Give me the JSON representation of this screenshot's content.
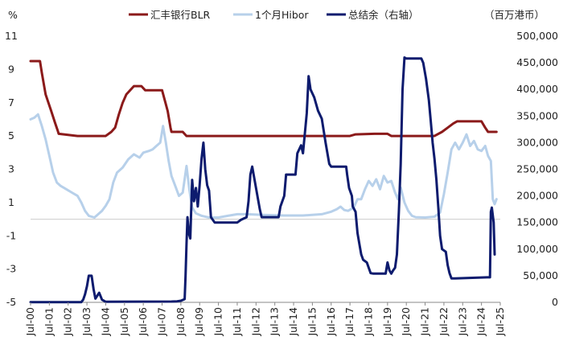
{
  "chart_data": {
    "type": "line",
    "left_unit": "%",
    "right_unit": "（百万港币）",
    "left_ylim": [
      -5,
      11
    ],
    "left_ticks": [
      "11",
      "9",
      "7",
      "5",
      "3",
      "1",
      "-1",
      "-3",
      "-5"
    ],
    "right_ylim": [
      0,
      500000
    ],
    "right_ticks": [
      "500,000",
      "450,000",
      "400,000",
      "350,000",
      "300,000",
      "250,000",
      "200,000",
      "150,000",
      "100,000",
      "50,000",
      "0"
    ],
    "x_tick_labels": [
      "Jul-00",
      "Jul-01",
      "Jul-02",
      "Jul-03",
      "Jul-04",
      "Jul-05",
      "Jul-06",
      "Jul-07",
      "Jul-08",
      "Jul-09",
      "Jul-10",
      "Jul-11",
      "Jul-12",
      "Jul-13",
      "Jul-14",
      "Jul-15",
      "Jul-16",
      "Jul-17",
      "Jul-18",
      "Jul-19",
      "Jul-20",
      "Jul-21",
      "Jul-22",
      "Jul-23",
      "Jul-24",
      "Jul-25"
    ],
    "x_range": [
      2000.5,
      2025.5
    ],
    "legend_position": "top",
    "series": [
      {
        "name": "汇丰银行BLR",
        "axis": "left",
        "color": "#8B1A1A",
        "points": [
          [
            2000.5,
            9.5
          ],
          [
            2001.0,
            9.5
          ],
          [
            2001.1,
            8.8
          ],
          [
            2001.3,
            7.5
          ],
          [
            2001.6,
            6.5
          ],
          [
            2001.8,
            5.8
          ],
          [
            2001.95,
            5.3
          ],
          [
            2002.0,
            5.13
          ],
          [
            2003.0,
            5.0
          ],
          [
            2004.5,
            5.0
          ],
          [
            2004.8,
            5.25
          ],
          [
            2005.0,
            5.5
          ],
          [
            2005.2,
            6.3
          ],
          [
            2005.4,
            7.0
          ],
          [
            2005.6,
            7.5
          ],
          [
            2005.8,
            7.75
          ],
          [
            2006.0,
            8.0
          ],
          [
            2006.4,
            8.0
          ],
          [
            2006.6,
            7.75
          ],
          [
            2007.5,
            7.75
          ],
          [
            2007.8,
            6.5
          ],
          [
            2007.95,
            5.5
          ],
          [
            2008.0,
            5.25
          ],
          [
            2008.6,
            5.25
          ],
          [
            2008.8,
            5.0
          ],
          [
            2017.5,
            5.0
          ],
          [
            2017.8,
            5.1
          ],
          [
            2018.8,
            5.13
          ],
          [
            2019.5,
            5.13
          ],
          [
            2019.7,
            5.0
          ],
          [
            2022.0,
            5.0
          ],
          [
            2022.4,
            5.25
          ],
          [
            2022.7,
            5.5
          ],
          [
            2023.0,
            5.75
          ],
          [
            2023.2,
            5.88
          ],
          [
            2024.5,
            5.88
          ],
          [
            2024.7,
            5.5
          ],
          [
            2024.85,
            5.25
          ],
          [
            2025.3,
            5.25
          ]
        ]
      },
      {
        "name": "1个月Hibor",
        "axis": "left",
        "color": "#B7D0EA",
        "points": [
          [
            2000.5,
            6.0
          ],
          [
            2000.7,
            6.1
          ],
          [
            2000.9,
            6.3
          ],
          [
            2001.1,
            5.6
          ],
          [
            2001.3,
            4.8
          ],
          [
            2001.5,
            3.8
          ],
          [
            2001.7,
            2.8
          ],
          [
            2001.9,
            2.2
          ],
          [
            2002.1,
            2.0
          ],
          [
            2002.4,
            1.8
          ],
          [
            2002.7,
            1.6
          ],
          [
            2003.0,
            1.4
          ],
          [
            2003.2,
            1.0
          ],
          [
            2003.4,
            0.5
          ],
          [
            2003.6,
            0.2
          ],
          [
            2003.9,
            0.1
          ],
          [
            2004.1,
            0.3
          ],
          [
            2004.3,
            0.5
          ],
          [
            2004.5,
            0.8
          ],
          [
            2004.7,
            1.2
          ],
          [
            2004.9,
            2.2
          ],
          [
            2005.1,
            2.8
          ],
          [
            2005.4,
            3.1
          ],
          [
            2005.7,
            3.6
          ],
          [
            2006.0,
            3.9
          ],
          [
            2006.3,
            3.7
          ],
          [
            2006.5,
            4.0
          ],
          [
            2006.8,
            4.1
          ],
          [
            2007.0,
            4.2
          ],
          [
            2007.2,
            4.4
          ],
          [
            2007.4,
            4.6
          ],
          [
            2007.55,
            5.6
          ],
          [
            2007.7,
            4.6
          ],
          [
            2007.85,
            3.5
          ],
          [
            2008.0,
            2.6
          ],
          [
            2008.2,
            2.0
          ],
          [
            2008.4,
            1.4
          ],
          [
            2008.6,
            1.6
          ],
          [
            2008.8,
            3.2
          ],
          [
            2008.95,
            1.8
          ],
          [
            2009.1,
            0.7
          ],
          [
            2009.3,
            0.35
          ],
          [
            2009.6,
            0.2
          ],
          [
            2010.0,
            0.1
          ],
          [
            2010.5,
            0.1
          ],
          [
            2011.0,
            0.2
          ],
          [
            2011.5,
            0.3
          ],
          [
            2012.0,
            0.3
          ],
          [
            2013.0,
            0.25
          ],
          [
            2014.0,
            0.22
          ],
          [
            2015.0,
            0.22
          ],
          [
            2016.0,
            0.3
          ],
          [
            2016.5,
            0.45
          ],
          [
            2016.8,
            0.6
          ],
          [
            2017.0,
            0.75
          ],
          [
            2017.2,
            0.55
          ],
          [
            2017.4,
            0.5
          ],
          [
            2017.7,
            0.7
          ],
          [
            2017.9,
            1.2
          ],
          [
            2018.1,
            1.2
          ],
          [
            2018.3,
            1.8
          ],
          [
            2018.5,
            2.3
          ],
          [
            2018.7,
            2.0
          ],
          [
            2018.9,
            2.4
          ],
          [
            2019.1,
            1.8
          ],
          [
            2019.3,
            2.6
          ],
          [
            2019.5,
            2.2
          ],
          [
            2019.7,
            2.3
          ],
          [
            2019.9,
            1.6
          ],
          [
            2020.05,
            1.2
          ],
          [
            2020.2,
            1.9
          ],
          [
            2020.4,
            1.0
          ],
          [
            2020.6,
            0.5
          ],
          [
            2020.8,
            0.2
          ],
          [
            2021.0,
            0.12
          ],
          [
            2021.5,
            0.1
          ],
          [
            2022.0,
            0.15
          ],
          [
            2022.3,
            0.4
          ],
          [
            2022.5,
            1.5
          ],
          [
            2022.7,
            2.8
          ],
          [
            2022.9,
            4.2
          ],
          [
            2023.1,
            4.6
          ],
          [
            2023.3,
            4.2
          ],
          [
            2023.5,
            4.6
          ],
          [
            2023.7,
            5.1
          ],
          [
            2023.9,
            4.4
          ],
          [
            2024.1,
            4.7
          ],
          [
            2024.3,
            4.2
          ],
          [
            2024.5,
            4.1
          ],
          [
            2024.7,
            4.4
          ],
          [
            2024.85,
            3.8
          ],
          [
            2025.0,
            3.5
          ],
          [
            2025.1,
            1.2
          ],
          [
            2025.2,
            0.9
          ],
          [
            2025.3,
            1.2
          ]
        ]
      },
      {
        "name": "总结余（右轴）",
        "axis": "right",
        "color": "#0D1B6E",
        "points": [
          [
            2000.5,
            500
          ],
          [
            2003.2,
            500
          ],
          [
            2003.3,
            5000
          ],
          [
            2003.4,
            15000
          ],
          [
            2003.5,
            30000
          ],
          [
            2003.6,
            50000
          ],
          [
            2003.75,
            50000
          ],
          [
            2003.85,
            25000
          ],
          [
            2003.95,
            7000
          ],
          [
            2004.15,
            18000
          ],
          [
            2004.3,
            5000
          ],
          [
            2004.5,
            1000
          ],
          [
            2008.0,
            1500
          ],
          [
            2008.3,
            2000
          ],
          [
            2008.5,
            3000
          ],
          [
            2008.7,
            6000
          ],
          [
            2008.75,
            50000
          ],
          [
            2008.8,
            110000
          ],
          [
            2008.85,
            160000
          ],
          [
            2008.92,
            130000
          ],
          [
            2009.0,
            120000
          ],
          [
            2009.1,
            230000
          ],
          [
            2009.2,
            190000
          ],
          [
            2009.3,
            215000
          ],
          [
            2009.4,
            180000
          ],
          [
            2009.5,
            220000
          ],
          [
            2009.6,
            270000
          ],
          [
            2009.7,
            300000
          ],
          [
            2009.8,
            250000
          ],
          [
            2009.9,
            220000
          ],
          [
            2010.0,
            210000
          ],
          [
            2010.1,
            160000
          ],
          [
            2010.3,
            150000
          ],
          [
            2011.5,
            150000
          ],
          [
            2011.7,
            155000
          ],
          [
            2012.0,
            160000
          ],
          [
            2012.1,
            190000
          ],
          [
            2012.2,
            240000
          ],
          [
            2012.3,
            255000
          ],
          [
            2012.5,
            215000
          ],
          [
            2012.7,
            175000
          ],
          [
            2012.8,
            160000
          ],
          [
            2013.7,
            160000
          ],
          [
            2013.8,
            180000
          ],
          [
            2014.0,
            200000
          ],
          [
            2014.1,
            240000
          ],
          [
            2014.6,
            240000
          ],
          [
            2014.7,
            280000
          ],
          [
            2014.9,
            295000
          ],
          [
            2015.0,
            280000
          ],
          [
            2015.2,
            355000
          ],
          [
            2015.3,
            425000
          ],
          [
            2015.4,
            400000
          ],
          [
            2015.6,
            385000
          ],
          [
            2015.8,
            360000
          ],
          [
            2016.0,
            345000
          ],
          [
            2016.2,
            300000
          ],
          [
            2016.4,
            260000
          ],
          [
            2016.5,
            255000
          ],
          [
            2017.3,
            255000
          ],
          [
            2017.35,
            240000
          ],
          [
            2017.45,
            215000
          ],
          [
            2017.6,
            200000
          ],
          [
            2017.65,
            180000
          ],
          [
            2017.8,
            170000
          ],
          [
            2017.9,
            130000
          ],
          [
            2018.0,
            110000
          ],
          [
            2018.1,
            90000
          ],
          [
            2018.2,
            80000
          ],
          [
            2018.4,
            75000
          ],
          [
            2018.6,
            55000
          ],
          [
            2018.75,
            54000
          ],
          [
            2019.4,
            54000
          ],
          [
            2019.5,
            75000
          ],
          [
            2019.6,
            60000
          ],
          [
            2019.7,
            54000
          ],
          [
            2019.8,
            60000
          ],
          [
            2019.9,
            65000
          ],
          [
            2020.0,
            90000
          ],
          [
            2020.1,
            170000
          ],
          [
            2020.2,
            260000
          ],
          [
            2020.3,
            400000
          ],
          [
            2020.4,
            460000
          ],
          [
            2020.5,
            458000
          ],
          [
            2021.3,
            458000
          ],
          [
            2021.4,
            450000
          ],
          [
            2021.55,
            420000
          ],
          [
            2021.7,
            380000
          ],
          [
            2021.8,
            340000
          ],
          [
            2021.9,
            300000
          ],
          [
            2022.0,
            270000
          ],
          [
            2022.1,
            230000
          ],
          [
            2022.2,
            180000
          ],
          [
            2022.3,
            125000
          ],
          [
            2022.4,
            100000
          ],
          [
            2022.6,
            95000
          ],
          [
            2022.7,
            70000
          ],
          [
            2022.8,
            55000
          ],
          [
            2022.9,
            45000
          ],
          [
            2023.1,
            45000
          ],
          [
            2024.8,
            47000
          ],
          [
            2024.95,
            47000
          ],
          [
            2025.0,
            170000
          ],
          [
            2025.05,
            178000
          ],
          [
            2025.15,
            150000
          ],
          [
            2025.2,
            90000
          ]
        ]
      }
    ]
  }
}
